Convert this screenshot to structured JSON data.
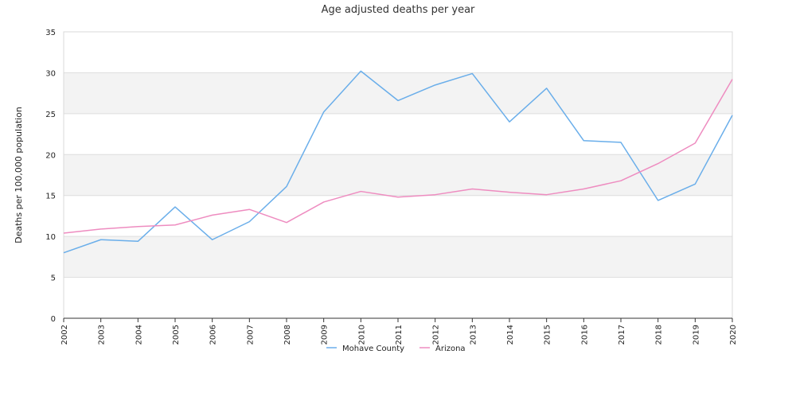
{
  "chart_data": {
    "type": "line",
    "title": "Age adjusted deaths per year",
    "ylabel": "Deaths per 100,000 population",
    "xlabel": "",
    "ylim": [
      0,
      35
    ],
    "y_ticks": [
      0,
      5,
      10,
      15,
      20,
      25,
      30,
      35
    ],
    "x": [
      "2002",
      "2003",
      "2004",
      "2005",
      "2006",
      "2007",
      "2008",
      "2009",
      "2010",
      "2011",
      "2012",
      "2013",
      "2014",
      "2015",
      "2016",
      "2017",
      "2018",
      "2019",
      "2020"
    ],
    "grid": "alternating horizontal bands",
    "legend_position": "bottom",
    "series": [
      {
        "name": "Mohave County",
        "color": "#6aaeea",
        "values": [
          8.0,
          9.6,
          9.4,
          13.6,
          9.6,
          11.8,
          16.1,
          25.2,
          30.2,
          26.6,
          28.5,
          29.9,
          24.0,
          28.1,
          21.7,
          21.5,
          14.4,
          16.4,
          24.8
        ]
      },
      {
        "name": "Arizona",
        "color": "#ee8cc0",
        "values": [
          10.4,
          10.9,
          11.2,
          11.4,
          12.6,
          13.3,
          11.7,
          14.2,
          15.5,
          14.8,
          15.1,
          15.8,
          15.4,
          15.1,
          15.8,
          16.8,
          18.9,
          21.4,
          29.2
        ]
      }
    ]
  }
}
